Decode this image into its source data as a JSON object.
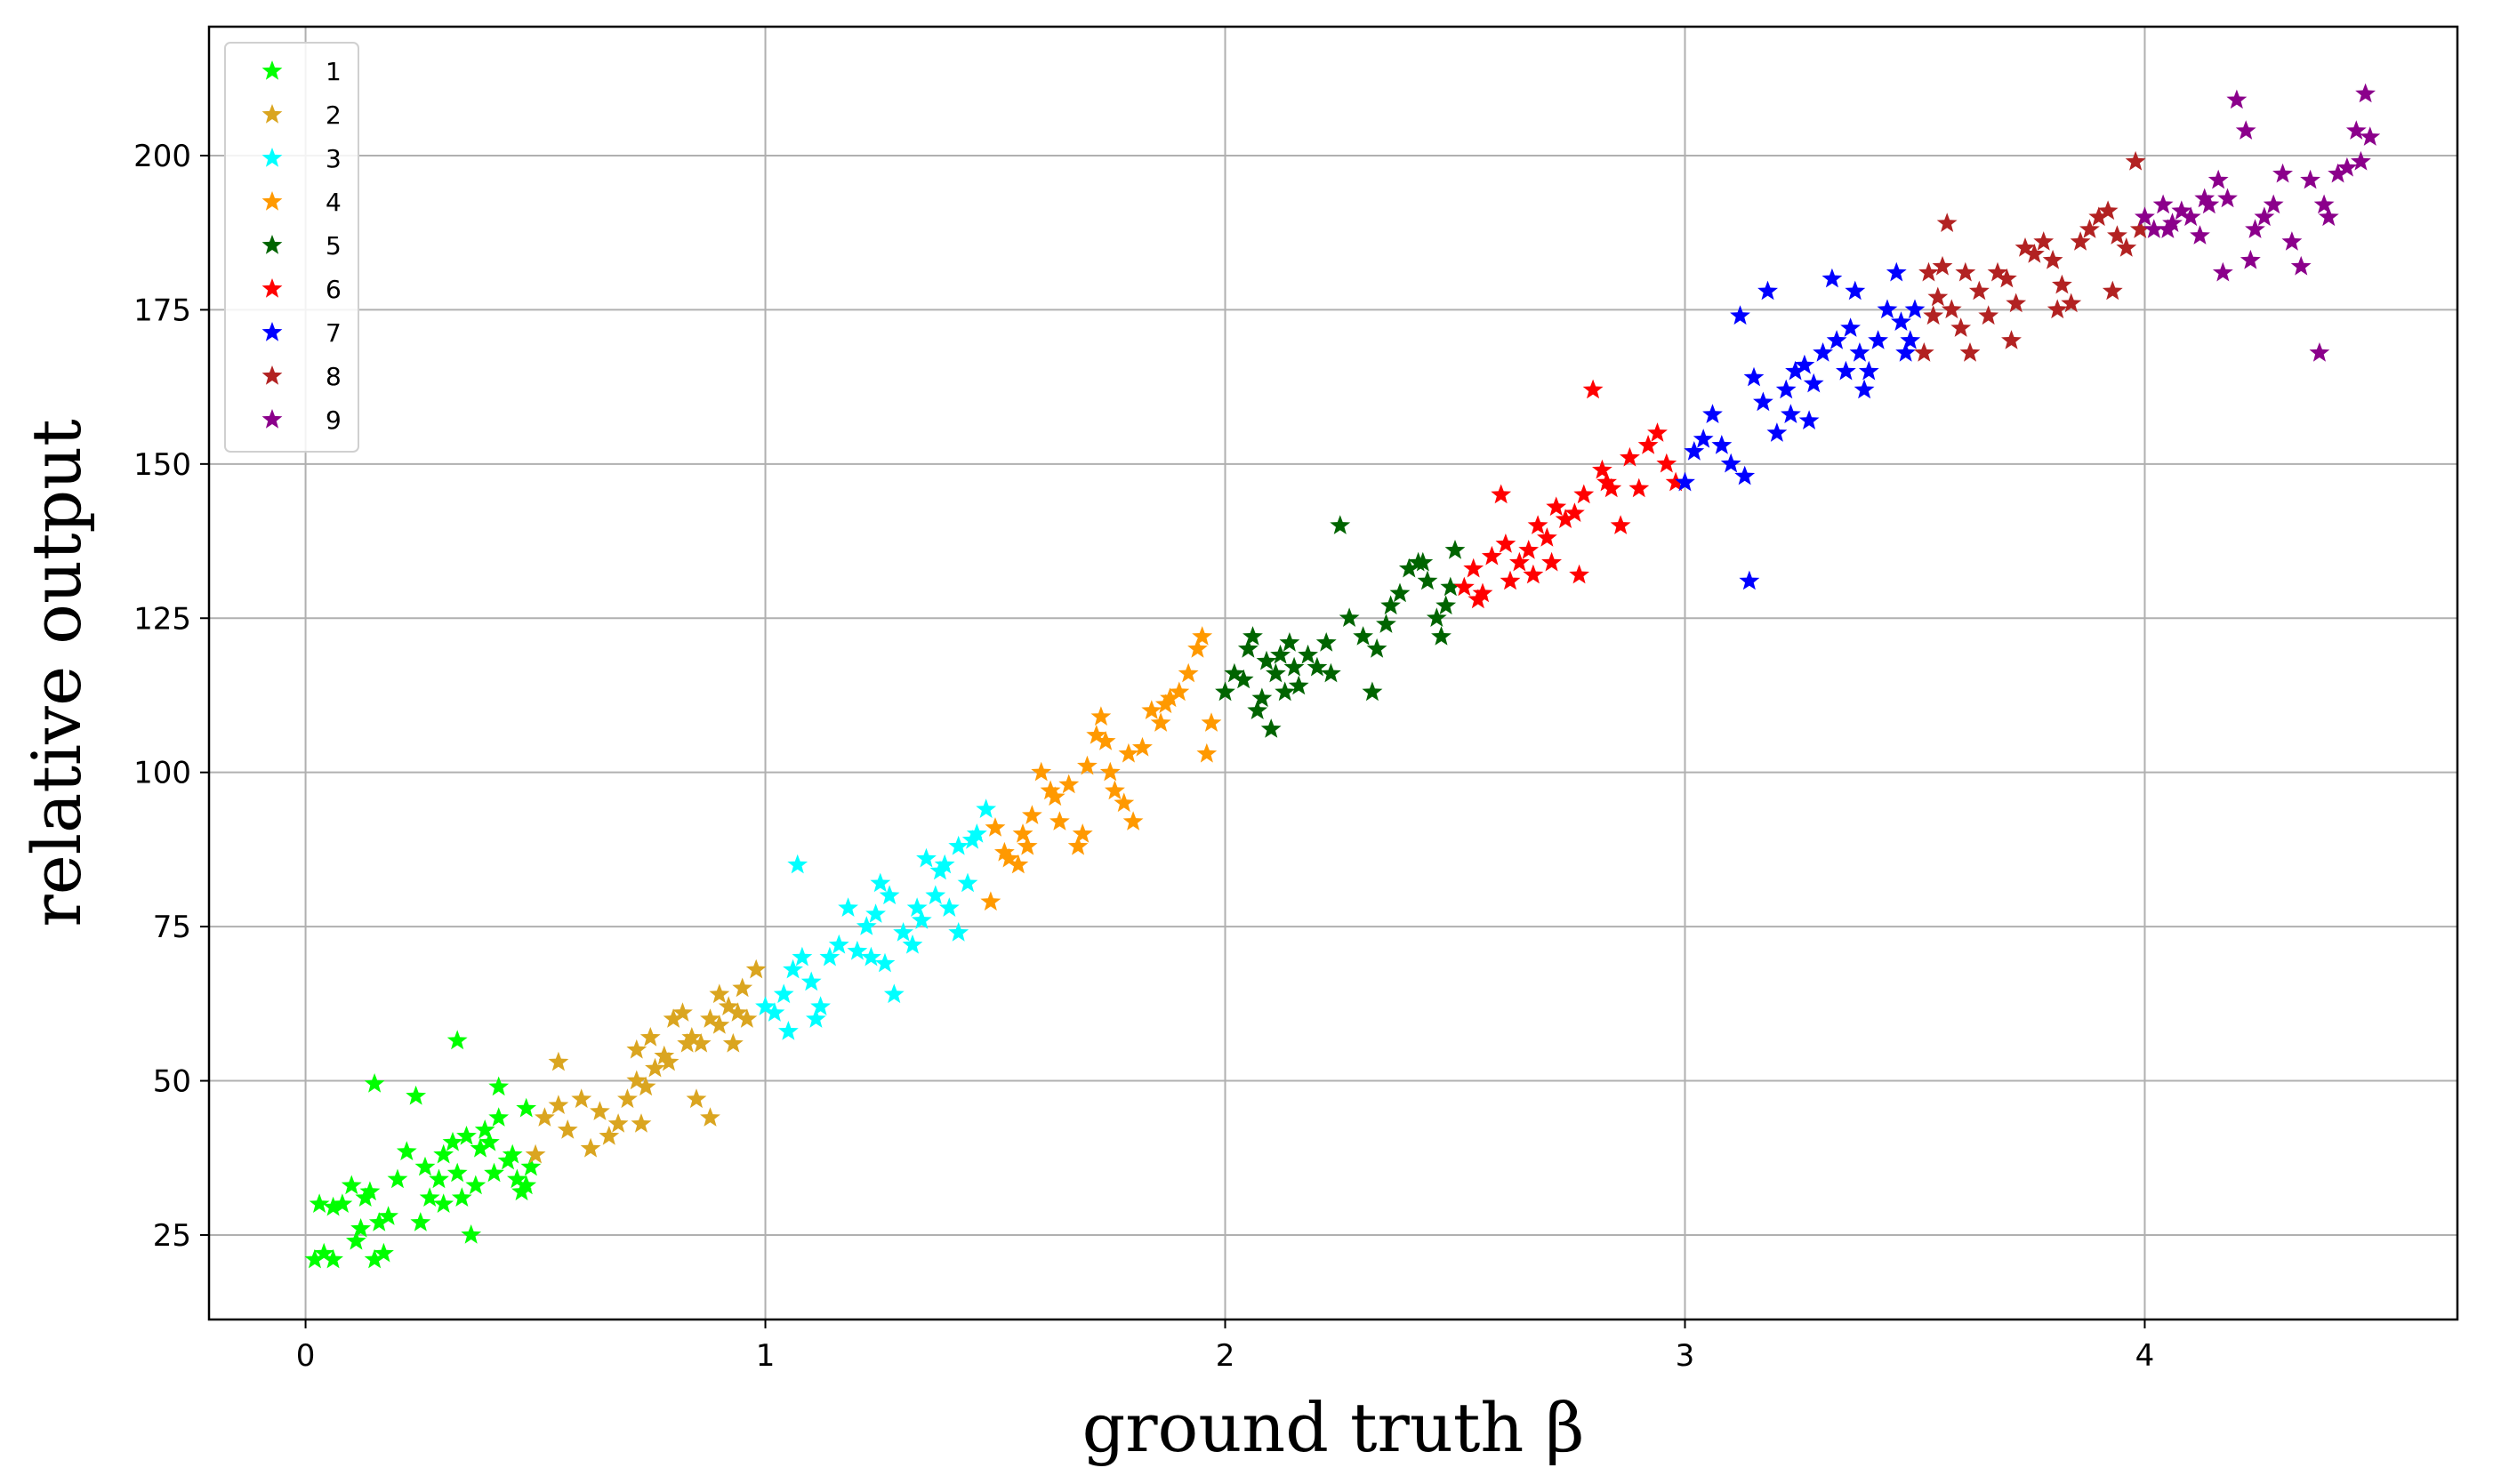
{
  "chart_data": {
    "type": "scatter",
    "xlabel": "ground truth β",
    "ylabel": "relative output",
    "xlim": [
      -0.21,
      4.68
    ],
    "ylim": [
      11.3,
      220.9
    ],
    "xticks": [
      0,
      1,
      2,
      3,
      4
    ],
    "yticks": [
      25,
      50,
      75,
      100,
      125,
      150,
      175,
      200
    ],
    "grid": true,
    "legend_position": "top-left",
    "marker": "star",
    "series": [
      {
        "name": "1",
        "color": "#00ff00",
        "points": [
          [
            0.02,
            21
          ],
          [
            0.04,
            22
          ],
          [
            0.06,
            21
          ],
          [
            0.08,
            30
          ],
          [
            0.03,
            30
          ],
          [
            0.06,
            29.5
          ],
          [
            0.1,
            33
          ],
          [
            0.12,
            26
          ],
          [
            0.14,
            32
          ],
          [
            0.15,
            21
          ],
          [
            0.17,
            22
          ],
          [
            0.16,
            27
          ],
          [
            0.11,
            24
          ],
          [
            0.2,
            34
          ],
          [
            0.22,
            38.5
          ],
          [
            0.25,
            27
          ],
          [
            0.27,
            31
          ],
          [
            0.29,
            34
          ],
          [
            0.3,
            38
          ],
          [
            0.32,
            40
          ],
          [
            0.33,
            35
          ],
          [
            0.35,
            41
          ],
          [
            0.34,
            31
          ],
          [
            0.37,
            33
          ],
          [
            0.38,
            39
          ],
          [
            0.4,
            40
          ],
          [
            0.42,
            44
          ],
          [
            0.44,
            37
          ],
          [
            0.46,
            34
          ],
          [
            0.47,
            32
          ],
          [
            0.48,
            33
          ],
          [
            0.49,
            36
          ],
          [
            0.41,
            35
          ],
          [
            0.36,
            25
          ],
          [
            0.24,
            47.5
          ],
          [
            0.15,
            49.5
          ],
          [
            0.33,
            56.5
          ],
          [
            0.42,
            49
          ],
          [
            0.48,
            45.5
          ],
          [
            0.3,
            30
          ],
          [
            0.26,
            36
          ],
          [
            0.39,
            42
          ],
          [
            0.18,
            28
          ],
          [
            0.13,
            31
          ],
          [
            0.45,
            38
          ]
        ]
      },
      {
        "name": "2",
        "color": "#daa520",
        "points": [
          [
            0.5,
            38
          ],
          [
            0.52,
            44
          ],
          [
            0.55,
            46
          ],
          [
            0.57,
            42
          ],
          [
            0.55,
            53
          ],
          [
            0.6,
            47
          ],
          [
            0.62,
            39
          ],
          [
            0.64,
            45
          ],
          [
            0.66,
            41
          ],
          [
            0.68,
            43
          ],
          [
            0.7,
            47
          ],
          [
            0.72,
            50
          ],
          [
            0.72,
            55
          ],
          [
            0.74,
            49
          ],
          [
            0.76,
            52
          ],
          [
            0.75,
            57
          ],
          [
            0.78,
            54
          ],
          [
            0.8,
            60
          ],
          [
            0.82,
            61
          ],
          [
            0.84,
            57
          ],
          [
            0.86,
            56
          ],
          [
            0.88,
            60
          ],
          [
            0.9,
            59
          ],
          [
            0.92,
            62
          ],
          [
            0.94,
            61
          ],
          [
            0.95,
            65
          ],
          [
            0.96,
            60
          ],
          [
            0.98,
            68
          ],
          [
            0.9,
            64
          ],
          [
            0.85,
            47
          ],
          [
            0.88,
            44
          ],
          [
            0.73,
            43
          ],
          [
            0.83,
            56
          ],
          [
            0.93,
            56
          ],
          [
            0.79,
            53
          ]
        ]
      },
      {
        "name": "3",
        "color": "#00ffff",
        "points": [
          [
            1.0,
            62
          ],
          [
            1.02,
            61
          ],
          [
            1.04,
            64
          ],
          [
            1.05,
            58
          ],
          [
            1.06,
            68
          ],
          [
            1.08,
            70
          ],
          [
            1.07,
            85
          ],
          [
            1.1,
            66
          ],
          [
            1.12,
            62
          ],
          [
            1.14,
            70
          ],
          [
            1.16,
            72
          ],
          [
            1.18,
            78
          ],
          [
            1.2,
            71
          ],
          [
            1.22,
            75
          ],
          [
            1.24,
            77
          ],
          [
            1.25,
            82
          ],
          [
            1.26,
            69
          ],
          [
            1.27,
            80
          ],
          [
            1.28,
            64
          ],
          [
            1.3,
            74
          ],
          [
            1.32,
            72
          ],
          [
            1.34,
            76
          ],
          [
            1.35,
            86
          ],
          [
            1.37,
            80
          ],
          [
            1.38,
            84
          ],
          [
            1.4,
            78
          ],
          [
            1.42,
            88
          ],
          [
            1.44,
            82
          ],
          [
            1.45,
            89
          ],
          [
            1.46,
            90
          ],
          [
            1.48,
            94
          ],
          [
            1.42,
            74
          ],
          [
            1.33,
            78
          ],
          [
            1.11,
            60
          ],
          [
            1.23,
            70
          ],
          [
            1.39,
            85
          ]
        ]
      },
      {
        "name": "4",
        "color": "#ff9900",
        "points": [
          [
            1.5,
            91
          ],
          [
            1.52,
            87
          ],
          [
            1.53,
            86
          ],
          [
            1.55,
            85
          ],
          [
            1.56,
            90
          ],
          [
            1.58,
            93
          ],
          [
            1.6,
            100
          ],
          [
            1.62,
            97
          ],
          [
            1.64,
            92
          ],
          [
            1.66,
            98
          ],
          [
            1.68,
            88
          ],
          [
            1.7,
            101
          ],
          [
            1.72,
            106
          ],
          [
            1.73,
            109
          ],
          [
            1.74,
            105
          ],
          [
            1.76,
            97
          ],
          [
            1.78,
            95
          ],
          [
            1.79,
            103
          ],
          [
            1.8,
            92
          ],
          [
            1.82,
            104
          ],
          [
            1.84,
            110
          ],
          [
            1.86,
            108
          ],
          [
            1.88,
            112
          ],
          [
            1.9,
            113
          ],
          [
            1.92,
            116
          ],
          [
            1.94,
            120
          ],
          [
            1.95,
            122
          ],
          [
            1.97,
            108
          ],
          [
            1.96,
            103
          ],
          [
            1.69,
            90
          ],
          [
            1.63,
            96
          ],
          [
            1.87,
            111
          ],
          [
            1.49,
            79
          ],
          [
            1.75,
            100
          ],
          [
            1.57,
            88
          ]
        ]
      },
      {
        "name": "5",
        "color": "#006400",
        "points": [
          [
            2.0,
            113
          ],
          [
            2.02,
            116
          ],
          [
            2.04,
            115
          ],
          [
            2.05,
            120
          ],
          [
            2.06,
            122
          ],
          [
            2.07,
            110
          ],
          [
            2.08,
            112
          ],
          [
            2.09,
            118
          ],
          [
            2.1,
            107
          ],
          [
            2.11,
            116
          ],
          [
            2.12,
            119
          ],
          [
            2.14,
            121
          ],
          [
            2.15,
            117
          ],
          [
            2.16,
            114
          ],
          [
            2.18,
            119
          ],
          [
            2.2,
            117
          ],
          [
            2.22,
            121
          ],
          [
            2.23,
            116
          ],
          [
            2.25,
            140
          ],
          [
            2.27,
            125
          ],
          [
            2.3,
            122
          ],
          [
            2.32,
            113
          ],
          [
            2.35,
            124
          ],
          [
            2.36,
            127
          ],
          [
            2.38,
            129
          ],
          [
            2.4,
            133
          ],
          [
            2.42,
            134
          ],
          [
            2.44,
            131
          ],
          [
            2.46,
            125
          ],
          [
            2.47,
            122
          ],
          [
            2.48,
            127
          ],
          [
            2.49,
            130
          ],
          [
            2.5,
            136
          ],
          [
            2.43,
            134
          ],
          [
            2.13,
            113
          ],
          [
            2.33,
            120
          ]
        ]
      },
      {
        "name": "6",
        "color": "#ff0000",
        "points": [
          [
            2.52,
            130
          ],
          [
            2.54,
            133
          ],
          [
            2.56,
            129
          ],
          [
            2.58,
            135
          ],
          [
            2.6,
            145
          ],
          [
            2.62,
            131
          ],
          [
            2.64,
            134
          ],
          [
            2.66,
            136
          ],
          [
            2.68,
            140
          ],
          [
            2.7,
            138
          ],
          [
            2.72,
            143
          ],
          [
            2.74,
            141
          ],
          [
            2.76,
            142
          ],
          [
            2.78,
            145
          ],
          [
            2.8,
            162
          ],
          [
            2.82,
            149
          ],
          [
            2.84,
            146
          ],
          [
            2.86,
            140
          ],
          [
            2.88,
            151
          ],
          [
            2.9,
            146
          ],
          [
            2.92,
            153
          ],
          [
            2.94,
            155
          ],
          [
            2.96,
            150
          ],
          [
            2.98,
            147
          ],
          [
            2.71,
            134
          ],
          [
            2.77,
            132
          ],
          [
            2.55,
            128
          ],
          [
            2.67,
            132
          ],
          [
            2.83,
            147
          ],
          [
            2.61,
            137
          ]
        ]
      },
      {
        "name": "7",
        "color": "#0000ff",
        "points": [
          [
            3.0,
            147
          ],
          [
            3.02,
            152
          ],
          [
            3.04,
            154
          ],
          [
            3.06,
            158
          ],
          [
            3.08,
            153
          ],
          [
            3.1,
            150
          ],
          [
            3.12,
            174
          ],
          [
            3.14,
            131
          ],
          [
            3.15,
            164
          ],
          [
            3.17,
            160
          ],
          [
            3.18,
            178
          ],
          [
            3.2,
            155
          ],
          [
            3.22,
            162
          ],
          [
            3.24,
            165
          ],
          [
            3.26,
            166
          ],
          [
            3.28,
            163
          ],
          [
            3.3,
            168
          ],
          [
            3.32,
            180
          ],
          [
            3.33,
            170
          ],
          [
            3.35,
            165
          ],
          [
            3.36,
            172
          ],
          [
            3.37,
            178
          ],
          [
            3.38,
            168
          ],
          [
            3.4,
            165
          ],
          [
            3.42,
            170
          ],
          [
            3.44,
            175
          ],
          [
            3.46,
            181
          ],
          [
            3.47,
            173
          ],
          [
            3.48,
            168
          ],
          [
            3.49,
            170
          ],
          [
            3.5,
            175
          ],
          [
            3.27,
            157
          ],
          [
            3.13,
            148
          ],
          [
            3.23,
            158
          ],
          [
            3.39,
            162
          ]
        ]
      },
      {
        "name": "8",
        "color": "#b22222",
        "points": [
          [
            3.52,
            168
          ],
          [
            3.54,
            174
          ],
          [
            3.55,
            177
          ],
          [
            3.56,
            182
          ],
          [
            3.57,
            189
          ],
          [
            3.58,
            175
          ],
          [
            3.6,
            172
          ],
          [
            3.62,
            168
          ],
          [
            3.64,
            178
          ],
          [
            3.66,
            174
          ],
          [
            3.68,
            181
          ],
          [
            3.7,
            180
          ],
          [
            3.72,
            176
          ],
          [
            3.74,
            185
          ],
          [
            3.76,
            184
          ],
          [
            3.78,
            186
          ],
          [
            3.8,
            183
          ],
          [
            3.82,
            179
          ],
          [
            3.84,
            176
          ],
          [
            3.86,
            186
          ],
          [
            3.88,
            188
          ],
          [
            3.9,
            190
          ],
          [
            3.92,
            191
          ],
          [
            3.94,
            187
          ],
          [
            3.96,
            185
          ],
          [
            3.98,
            199
          ],
          [
            3.99,
            188
          ],
          [
            3.71,
            170
          ],
          [
            3.81,
            175
          ],
          [
            3.61,
            181
          ],
          [
            3.93,
            178
          ],
          [
            3.53,
            181
          ]
        ]
      },
      {
        "name": "9",
        "color": "#8b008b",
        "points": [
          [
            4.0,
            190
          ],
          [
            4.02,
            188
          ],
          [
            4.04,
            192
          ],
          [
            4.06,
            189
          ],
          [
            4.08,
            191
          ],
          [
            4.1,
            190
          ],
          [
            4.12,
            187
          ],
          [
            4.14,
            192
          ],
          [
            4.16,
            196
          ],
          [
            4.18,
            193
          ],
          [
            4.2,
            209
          ],
          [
            4.22,
            204
          ],
          [
            4.24,
            188
          ],
          [
            4.26,
            190
          ],
          [
            4.28,
            192
          ],
          [
            4.3,
            197
          ],
          [
            4.32,
            186
          ],
          [
            4.34,
            182
          ],
          [
            4.36,
            196
          ],
          [
            4.38,
            168
          ],
          [
            4.4,
            190
          ],
          [
            4.42,
            197
          ],
          [
            4.44,
            198
          ],
          [
            4.46,
            204
          ],
          [
            4.47,
            199
          ],
          [
            4.48,
            210
          ],
          [
            4.49,
            203
          ],
          [
            4.17,
            181
          ],
          [
            4.23,
            183
          ],
          [
            4.05,
            188
          ],
          [
            4.39,
            192
          ],
          [
            4.13,
            193
          ]
        ]
      }
    ]
  }
}
